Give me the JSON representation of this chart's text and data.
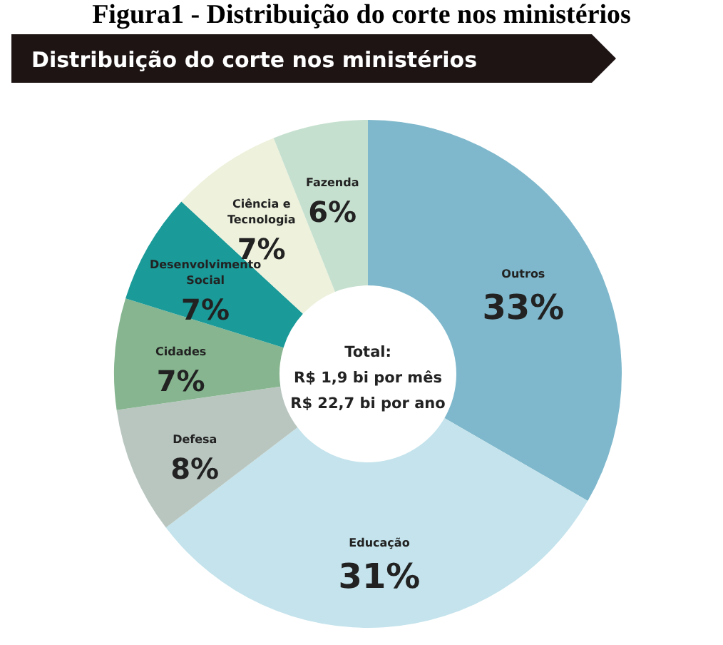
{
  "chart_data": {
    "type": "donut",
    "title": "Distribuição do corte nos ministérios",
    "categories": [
      "Outros",
      "Educação",
      "Defesa",
      "Cidades",
      "Desenvolvimento Social",
      "Ciência e Tecnologia",
      "Fazenda"
    ],
    "values": [
      33,
      31,
      8,
      7,
      7,
      7,
      6
    ],
    "value_labels": [
      "33%",
      "31%",
      "8%",
      "7%",
      "7%",
      "7%",
      "6%"
    ],
    "colors": [
      "#7fb8cc",
      "#c4e3ec",
      "#b9c6c0",
      "#86b58f",
      "#1a9a98",
      "#eef1dc",
      "#c6e0cf"
    ],
    "annotations": [
      "Figura1 - Distribuição do corte nos ministérios",
      "Total:",
      "R$ 1,9 bi por mês",
      "R$ 22,7 bi por ano"
    ],
    "data_labels": false
  }
}
